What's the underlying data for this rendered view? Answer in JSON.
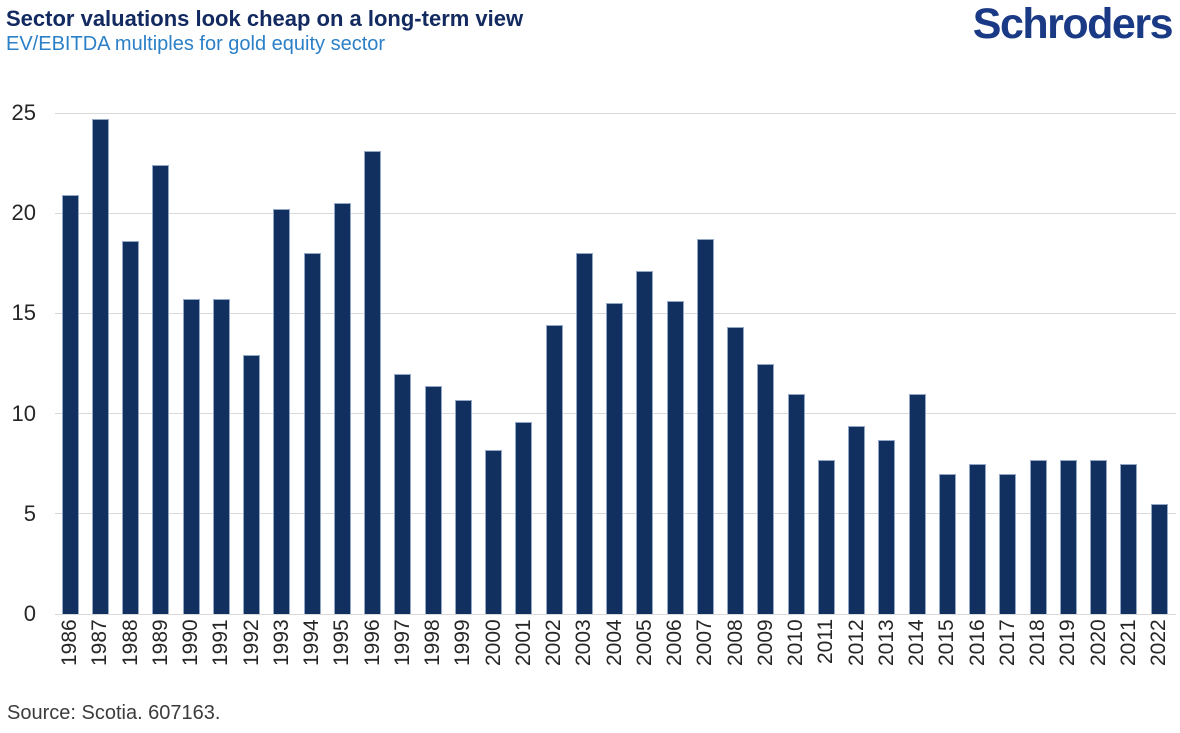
{
  "branding": {
    "logo_text": "Schroders"
  },
  "footer": {
    "source": "Source: Scotia. 607163."
  },
  "colors": {
    "title_navy": "#132a60",
    "subtitle_blue": "#2b80c8",
    "logo_navy": "#1a3a85",
    "bar_fill": "#11305f",
    "bar_edge": "#93a8c7",
    "gridline": "#d9d9d9",
    "tick_label": "#262626",
    "source_text": "#3c3c3c",
    "background": "#ffffff"
  },
  "chart_data": {
    "type": "bar",
    "title": "Sector valuations look cheap on a long-term view",
    "subtitle": "EV/EBITDA multiples for gold equity sector",
    "xlabel": "",
    "ylabel": "",
    "ylim": [
      0,
      25
    ],
    "yticks": [
      0,
      5,
      10,
      15,
      20,
      25
    ],
    "grid": "horizontal",
    "legend": "none",
    "categories": [
      "1986",
      "1987",
      "1988",
      "1989",
      "1990",
      "1991",
      "1992",
      "1993",
      "1994",
      "1995",
      "1996",
      "1997",
      "1998",
      "1999",
      "2000",
      "2001",
      "2002",
      "2003",
      "2004",
      "2005",
      "2006",
      "2007",
      "2008",
      "2009",
      "2010",
      "2011",
      "2012",
      "2013",
      "2014",
      "2015",
      "2016",
      "2017",
      "2018",
      "2019",
      "2020",
      "2021",
      "2022"
    ],
    "values": [
      20.9,
      24.7,
      18.6,
      22.4,
      15.7,
      15.7,
      12.9,
      20.2,
      18.0,
      20.5,
      23.1,
      12.0,
      11.4,
      10.7,
      8.2,
      9.6,
      14.4,
      18.0,
      15.5,
      17.1,
      15.6,
      18.7,
      14.3,
      12.5,
      11.0,
      7.7,
      9.4,
      8.7,
      11.0,
      7.0,
      7.5,
      7.0,
      7.7,
      7.7,
      7.7,
      7.5,
      5.5
    ]
  }
}
